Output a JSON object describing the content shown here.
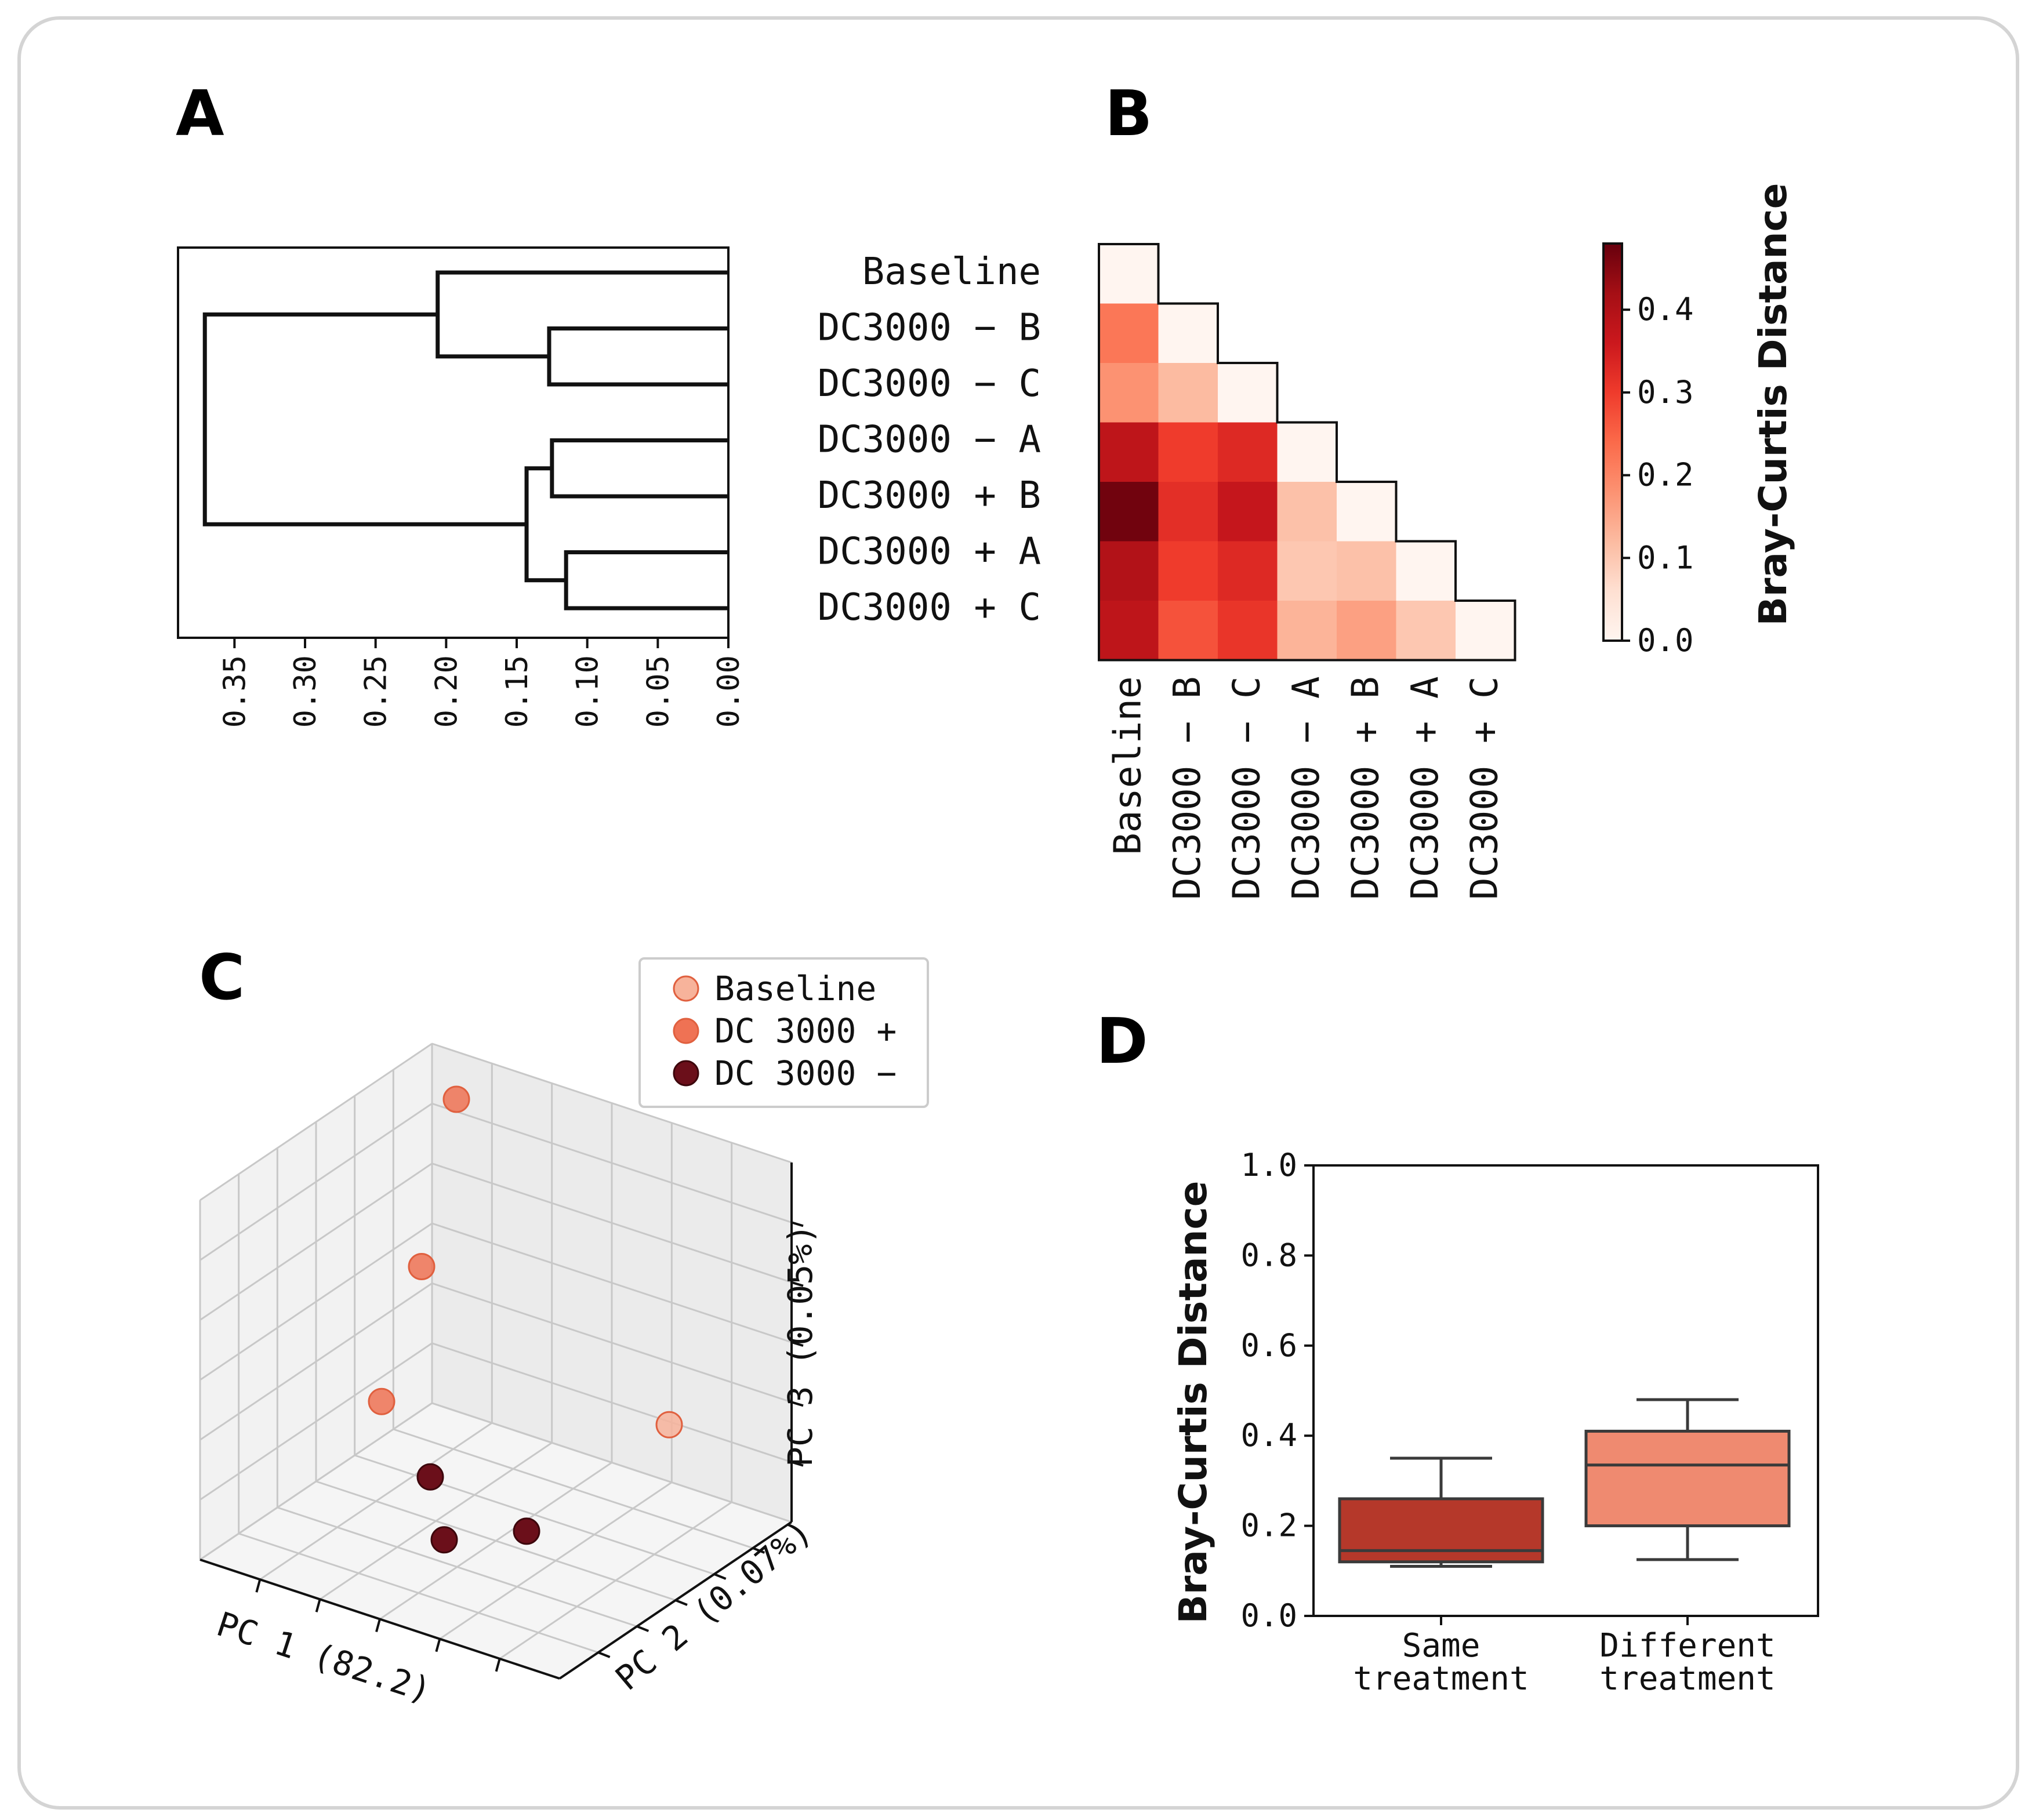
{
  "panels": {
    "a": "A",
    "b": "B",
    "c": "C",
    "d": "D"
  },
  "colors": {
    "frame": "#d0d0d0",
    "baseline": "#f7b39b",
    "dc3000_plus": "#ef7254",
    "dc3000_minus": "#6b0f1a",
    "box_same": "#b5382a",
    "box_diff": "#ef8a70"
  },
  "chart_data": [
    {
      "type": "dendrogram",
      "panel": "A",
      "leaves": [
        "Baseline",
        "DC3000 − B",
        "DC3000 − C",
        "DC3000 − A",
        "DC3000 + B",
        "DC3000 + A",
        "DC3000 + C"
      ],
      "merges": [
        {
          "left": "DC3000 − B",
          "right": "DC3000 − C",
          "height": 0.127
        },
        {
          "left": "DC3000 − A",
          "right": "DC3000 + B",
          "height": 0.125
        },
        {
          "left": "DC3000 + A",
          "right": "DC3000 + C",
          "height": 0.115
        },
        {
          "left": "Baseline",
          "right": "cluster(DC3000 − B, DC3000 − C)",
          "height": 0.206
        },
        {
          "left": "cluster(DC3000 − A, DC3000 + B)",
          "right": "cluster(DC3000 + A, DC3000 + C)",
          "height": 0.143
        },
        {
          "left": "cluster(top)",
          "right": "cluster(bottom)",
          "height": 0.371
        }
      ],
      "xticks": [
        "0.35",
        "0.30",
        "0.25",
        "0.20",
        "0.15",
        "0.10",
        "0.05",
        "0.00"
      ],
      "xlim": [
        0.39,
        0.0
      ]
    },
    {
      "type": "heatmap",
      "panel": "B",
      "rows": [
        "Baseline",
        "DC3000 − B",
        "DC3000 − C",
        "DC3000 − A",
        "DC3000 + B",
        "DC3000 + A",
        "DC3000 + C"
      ],
      "cols": [
        "Baseline",
        "DC3000 − B",
        "DC3000 − C",
        "DC3000 − A",
        "DC3000 + B",
        "DC3000 + A",
        "DC3000 + C"
      ],
      "values": [
        [
          0.0
        ],
        [
          0.22,
          0.0
        ],
        [
          0.18,
          0.12,
          0.0
        ],
        [
          0.38,
          0.3,
          0.33,
          0.0
        ],
        [
          0.47,
          0.32,
          0.37,
          0.11,
          0.0
        ],
        [
          0.4,
          0.3,
          0.33,
          0.1,
          0.11,
          0.0
        ],
        [
          0.38,
          0.27,
          0.31,
          0.13,
          0.16,
          0.1,
          0.0
        ]
      ],
      "colorbar": {
        "label": "Bray-Curtis Distance",
        "ticks": [
          "0.0",
          "0.1",
          "0.2",
          "0.3",
          "0.4"
        ],
        "range": [
          0.0,
          0.48
        ]
      }
    },
    {
      "type": "scatter3d",
      "panel": "C",
      "axes": {
        "x": "PC 1 (82.2)",
        "y": "PC 2 (0.07%)",
        "z": "PC 3 (0.05%)"
      },
      "legend": [
        "Baseline",
        "DC 3000 +",
        "DC 3000 −"
      ],
      "series": [
        {
          "name": "Baseline",
          "points": [
            [
              0.95,
              0.55,
              0.45
            ]
          ]
        },
        {
          "name": "DC 3000 +",
          "points": [
            [
              0.1,
              0.95,
              0.9
            ],
            [
              0.1,
              0.8,
              0.5
            ],
            [
              0.15,
              0.55,
              0.25
            ]
          ]
        },
        {
          "name": "DC 3000 −",
          "points": [
            [
              0.35,
              0.45,
              0.15
            ],
            [
              0.55,
              0.2,
              0.15
            ],
            [
              0.65,
              0.4,
              0.12
            ]
          ]
        }
      ]
    },
    {
      "type": "box",
      "panel": "D",
      "ylabel": "Bray-Curtis Distance",
      "ylim": [
        0.0,
        1.0
      ],
      "yticks": [
        "0.0",
        "0.2",
        "0.4",
        "0.6",
        "0.8",
        "1.0"
      ],
      "categories": [
        "Same\ntreatment",
        "Different\ntreatment"
      ],
      "boxes": [
        {
          "name": "Same treatment",
          "whislo": 0.11,
          "q1": 0.12,
          "med": 0.145,
          "q3": 0.26,
          "whishi": 0.35
        },
        {
          "name": "Different treatment",
          "whislo": 0.125,
          "q1": 0.2,
          "med": 0.335,
          "q3": 0.41,
          "whishi": 0.48
        }
      ]
    }
  ]
}
